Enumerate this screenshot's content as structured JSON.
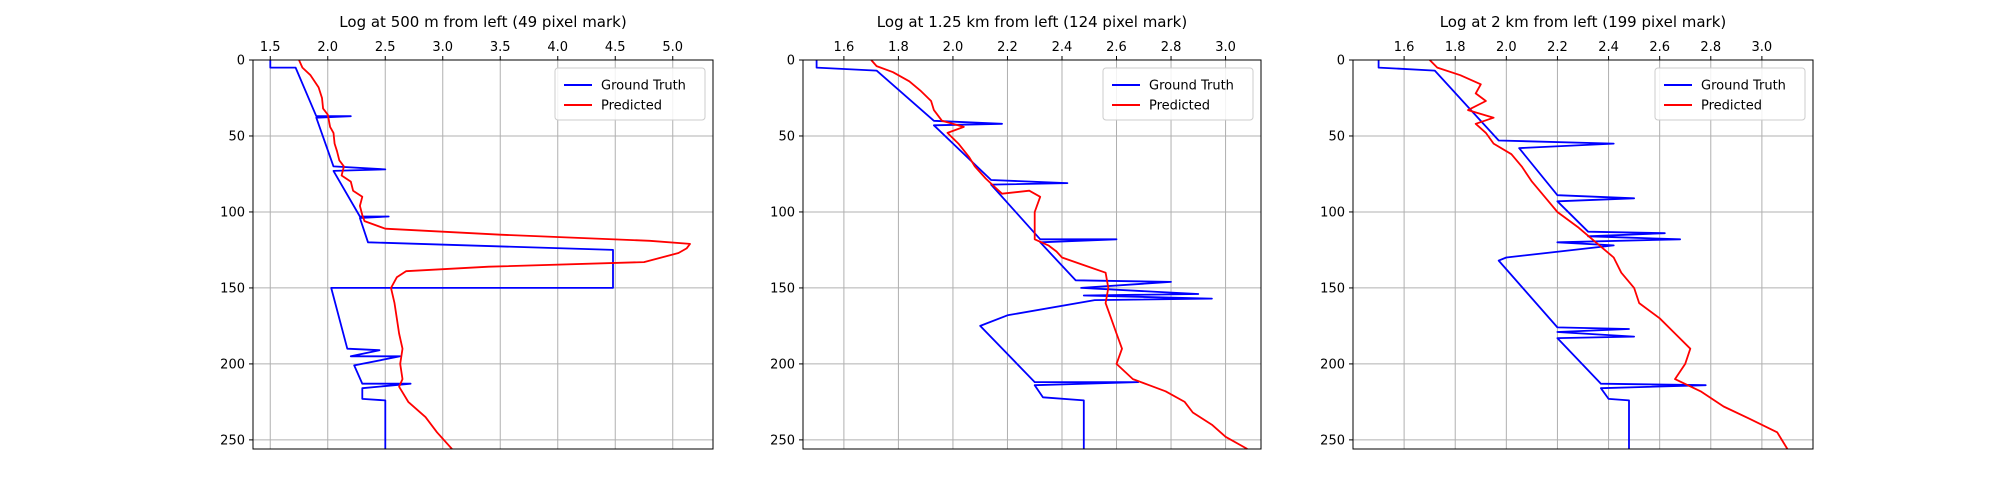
{
  "colors": {
    "ground_truth": "#0000ff",
    "predicted": "#ff0000",
    "grid": "#b0b0b0",
    "legend_border": "#cccccc"
  },
  "chart_data": [
    {
      "type": "line",
      "title": "Log at 500 m from left (49 pixel mark)",
      "xlim": [
        1.35,
        5.35
      ],
      "ylim": [
        256,
        0
      ],
      "x_ticks": [
        1.5,
        2.0,
        2.5,
        3.0,
        3.5,
        4.0,
        4.5,
        5.0
      ],
      "x_tick_labels": [
        "1.5",
        "2.0",
        "2.5",
        "3.0",
        "3.5",
        "4.0",
        "4.5",
        "5.0"
      ],
      "y_ticks": [
        0,
        50,
        100,
        150,
        200,
        250
      ],
      "y_tick_labels": [
        "0",
        "50",
        "100",
        "150",
        "200",
        "250"
      ],
      "grid": true,
      "legend_position": "top-right",
      "series": [
        {
          "name": "Ground Truth",
          "color_key": "ground_truth",
          "points": [
            [
              1.5,
              0
            ],
            [
              1.5,
              5
            ],
            [
              1.72,
              5
            ],
            [
              1.9,
              37
            ],
            [
              2.2,
              37
            ],
            [
              1.9,
              38
            ],
            [
              2.05,
              70
            ],
            [
              2.5,
              72
            ],
            [
              2.05,
              73
            ],
            [
              2.28,
              103
            ],
            [
              2.53,
              103
            ],
            [
              2.28,
              104
            ],
            [
              2.35,
              120
            ],
            [
              4.48,
              125
            ],
            [
              4.48,
              150
            ],
            [
              2.03,
              150
            ],
            [
              2.17,
              190
            ],
            [
              2.45,
              191
            ],
            [
              2.2,
              195
            ],
            [
              2.63,
              195
            ],
            [
              2.23,
              201
            ],
            [
              2.3,
              213
            ],
            [
              2.72,
              213
            ],
            [
              2.3,
              216
            ],
            [
              2.3,
              223
            ],
            [
              2.5,
              224
            ],
            [
              2.5,
              256
            ]
          ]
        },
        {
          "name": "Predicted",
          "color_key": "predicted",
          "points": [
            [
              1.75,
              0
            ],
            [
              1.78,
              5
            ],
            [
              1.85,
              10
            ],
            [
              1.92,
              18
            ],
            [
              1.95,
              25
            ],
            [
              1.96,
              32
            ],
            [
              2.0,
              36
            ],
            [
              2.02,
              44
            ],
            [
              2.05,
              48
            ],
            [
              2.06,
              55
            ],
            [
              2.08,
              60
            ],
            [
              2.1,
              66
            ],
            [
              2.14,
              70
            ],
            [
              2.12,
              76
            ],
            [
              2.2,
              80
            ],
            [
              2.22,
              86
            ],
            [
              2.3,
              90
            ],
            [
              2.28,
              96
            ],
            [
              2.3,
              102
            ],
            [
              2.32,
              106
            ],
            [
              2.5,
              111
            ],
            [
              3.5,
              115
            ],
            [
              4.8,
              119
            ],
            [
              5.15,
              121
            ],
            [
              5.12,
              124
            ],
            [
              5.05,
              127
            ],
            [
              4.75,
              133
            ],
            [
              3.4,
              136
            ],
            [
              2.68,
              139
            ],
            [
              2.6,
              143
            ],
            [
              2.55,
              150
            ],
            [
              2.58,
              160
            ],
            [
              2.6,
              170
            ],
            [
              2.62,
              180
            ],
            [
              2.65,
              190
            ],
            [
              2.63,
              200
            ],
            [
              2.65,
              210
            ],
            [
              2.62,
              215
            ],
            [
              2.7,
              225
            ],
            [
              2.85,
              235
            ],
            [
              2.95,
              245
            ],
            [
              3.08,
              256
            ]
          ]
        }
      ]
    },
    {
      "type": "line",
      "title": "Log at 1.25 km from left (124 pixel mark)",
      "xlim": [
        1.45,
        3.13
      ],
      "ylim": [
        256,
        0
      ],
      "x_ticks": [
        1.6,
        1.8,
        2.0,
        2.2,
        2.4,
        2.6,
        2.8,
        3.0
      ],
      "x_tick_labels": [
        "1.6",
        "1.8",
        "2.0",
        "2.2",
        "2.4",
        "2.6",
        "2.8",
        "3.0"
      ],
      "y_ticks": [
        0,
        50,
        100,
        150,
        200,
        250
      ],
      "y_tick_labels": [
        "0",
        "50",
        "100",
        "150",
        "200",
        "250"
      ],
      "grid": true,
      "legend_position": "top-right",
      "series": [
        {
          "name": "Ground Truth",
          "color_key": "ground_truth",
          "points": [
            [
              1.5,
              0
            ],
            [
              1.5,
              5
            ],
            [
              1.72,
              7
            ],
            [
              1.93,
              40
            ],
            [
              2.18,
              42
            ],
            [
              1.93,
              43
            ],
            [
              2.14,
              79
            ],
            [
              2.42,
              81
            ],
            [
              2.14,
              82
            ],
            [
              2.32,
              118
            ],
            [
              2.6,
              118
            ],
            [
              2.32,
              120
            ],
            [
              2.45,
              145
            ],
            [
              2.8,
              146
            ],
            [
              2.47,
              150
            ],
            [
              2.9,
              154
            ],
            [
              2.48,
              155
            ],
            [
              2.95,
              157
            ],
            [
              2.52,
              158
            ],
            [
              2.2,
              168
            ],
            [
              2.1,
              175
            ],
            [
              2.3,
              212
            ],
            [
              2.68,
              212
            ],
            [
              2.3,
              214
            ],
            [
              2.33,
              222
            ],
            [
              2.48,
              224
            ],
            [
              2.48,
              256
            ]
          ]
        },
        {
          "name": "Predicted",
          "color_key": "predicted",
          "points": [
            [
              1.7,
              0
            ],
            [
              1.72,
              4
            ],
            [
              1.78,
              8
            ],
            [
              1.84,
              14
            ],
            [
              1.88,
              20
            ],
            [
              1.92,
              27
            ],
            [
              1.93,
              33
            ],
            [
              1.96,
              40
            ],
            [
              2.04,
              44
            ],
            [
              1.98,
              48
            ],
            [
              2.02,
              55
            ],
            [
              2.06,
              64
            ],
            [
              2.08,
              70
            ],
            [
              2.12,
              78
            ],
            [
              2.15,
              83
            ],
            [
              2.18,
              88
            ],
            [
              2.28,
              86
            ],
            [
              2.32,
              90
            ],
            [
              2.3,
              100
            ],
            [
              2.3,
              110
            ],
            [
              2.3,
              118
            ],
            [
              2.35,
              122
            ],
            [
              2.38,
              126
            ],
            [
              2.4,
              130
            ],
            [
              2.48,
              135
            ],
            [
              2.56,
              140
            ],
            [
              2.57,
              150
            ],
            [
              2.56,
              160
            ],
            [
              2.58,
              170
            ],
            [
              2.6,
              180
            ],
            [
              2.62,
              190
            ],
            [
              2.6,
              200
            ],
            [
              2.66,
              210
            ],
            [
              2.72,
              214
            ],
            [
              2.78,
              218
            ],
            [
              2.85,
              225
            ],
            [
              2.88,
              232
            ],
            [
              2.95,
              240
            ],
            [
              3.0,
              248
            ],
            [
              3.08,
              256
            ]
          ]
        }
      ]
    },
    {
      "type": "line",
      "title": "Log at 2 km from left (199 pixel mark)",
      "xlim": [
        1.4,
        3.2
      ],
      "ylim": [
        256,
        0
      ],
      "x_ticks": [
        1.6,
        1.8,
        2.0,
        2.2,
        2.4,
        2.6,
        2.8,
        3.0
      ],
      "x_tick_labels": [
        "1.6",
        "1.8",
        "2.0",
        "2.2",
        "2.4",
        "2.6",
        "2.8",
        "3.0"
      ],
      "y_ticks": [
        0,
        50,
        100,
        150,
        200,
        250
      ],
      "y_tick_labels": [
        "0",
        "50",
        "100",
        "150",
        "200",
        "250"
      ],
      "grid": true,
      "legend_position": "top-right",
      "series": [
        {
          "name": "Ground Truth",
          "color_key": "ground_truth",
          "points": [
            [
              1.5,
              0
            ],
            [
              1.5,
              5
            ],
            [
              1.72,
              7
            ],
            [
              1.97,
              53
            ],
            [
              2.42,
              55
            ],
            [
              2.05,
              58
            ],
            [
              2.2,
              89
            ],
            [
              2.5,
              91
            ],
            [
              2.2,
              93
            ],
            [
              2.32,
              113
            ],
            [
              2.62,
              114
            ],
            [
              2.32,
              116
            ],
            [
              2.68,
              118
            ],
            [
              2.2,
              120
            ],
            [
              2.42,
              122
            ],
            [
              2.0,
              130
            ],
            [
              1.97,
              132
            ],
            [
              2.2,
              176
            ],
            [
              2.48,
              177
            ],
            [
              2.2,
              179
            ],
            [
              2.5,
              182
            ],
            [
              2.2,
              183
            ],
            [
              2.37,
              213
            ],
            [
              2.78,
              214
            ],
            [
              2.37,
              216
            ],
            [
              2.4,
              223
            ],
            [
              2.48,
              224
            ],
            [
              2.48,
              256
            ]
          ]
        },
        {
          "name": "Predicted",
          "color_key": "predicted",
          "points": [
            [
              1.7,
              0
            ],
            [
              1.73,
              5
            ],
            [
              1.82,
              10
            ],
            [
              1.9,
              16
            ],
            [
              1.88,
              22
            ],
            [
              1.92,
              27
            ],
            [
              1.85,
              33
            ],
            [
              1.95,
              38
            ],
            [
              1.88,
              42
            ],
            [
              1.92,
              48
            ],
            [
              1.95,
              55
            ],
            [
              2.02,
              62
            ],
            [
              2.06,
              70
            ],
            [
              2.1,
              80
            ],
            [
              2.15,
              90
            ],
            [
              2.2,
              100
            ],
            [
              2.28,
              110
            ],
            [
              2.35,
              120
            ],
            [
              2.42,
              130
            ],
            [
              2.45,
              140
            ],
            [
              2.5,
              150
            ],
            [
              2.52,
              160
            ],
            [
              2.6,
              170
            ],
            [
              2.66,
              180
            ],
            [
              2.72,
              190
            ],
            [
              2.7,
              200
            ],
            [
              2.66,
              210
            ],
            [
              2.76,
              218
            ],
            [
              2.85,
              228
            ],
            [
              2.95,
              236
            ],
            [
              3.06,
              245
            ],
            [
              3.1,
              256
            ]
          ]
        }
      ]
    }
  ]
}
